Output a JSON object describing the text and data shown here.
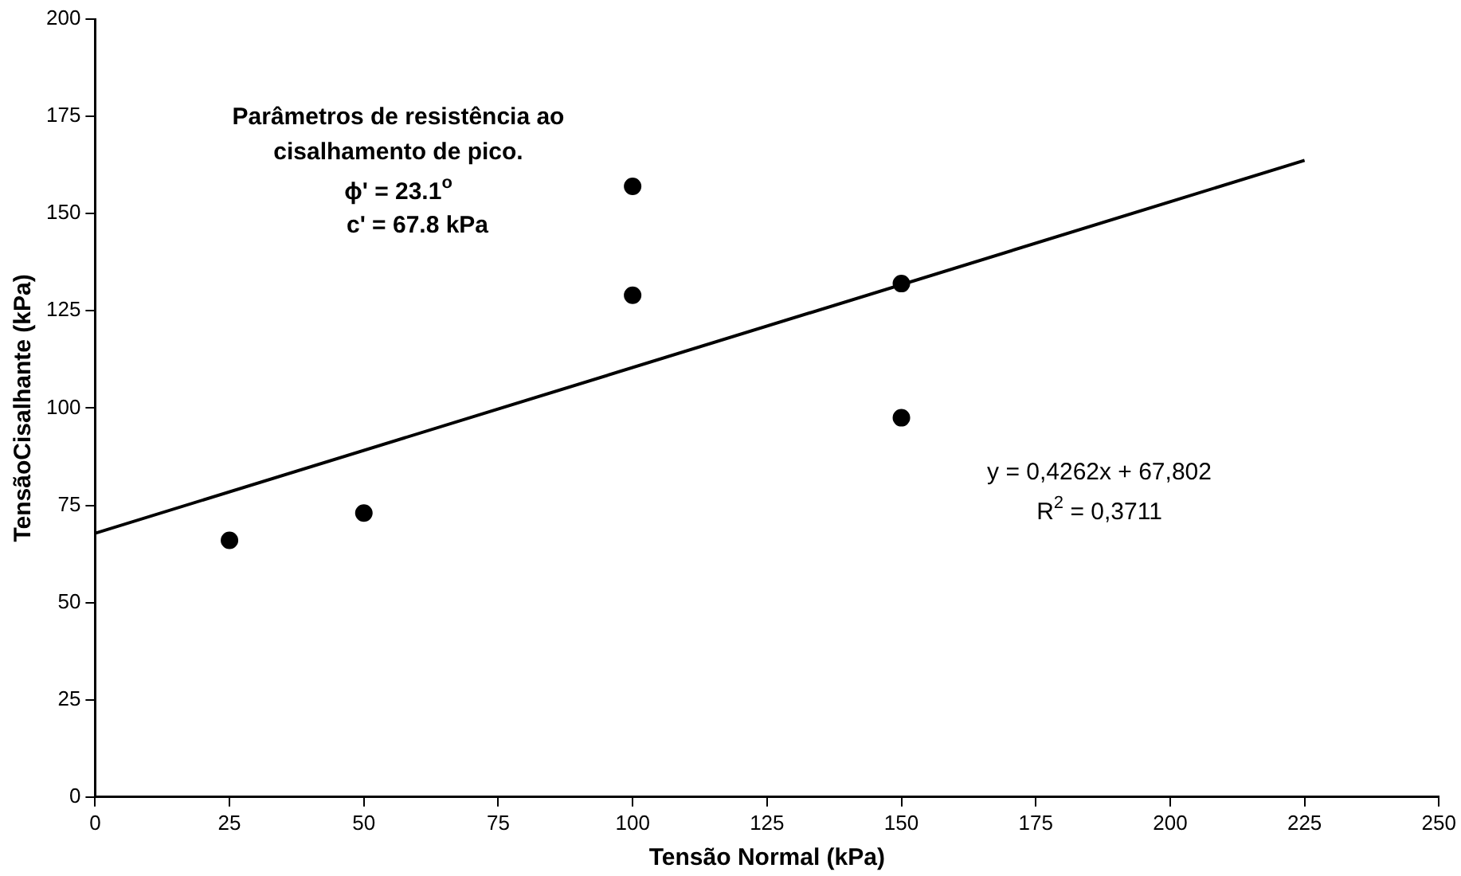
{
  "chart_data": {
    "type": "scatter",
    "xlabel": "Tensão Normal (kPa)",
    "ylabel": "TensãoCisalhante (kPa)",
    "xlim": [
      0,
      250
    ],
    "xticks": [
      0,
      25,
      50,
      75,
      100,
      125,
      150,
      175,
      200,
      225,
      250
    ],
    "ylim": [
      0,
      200
    ],
    "yticks": [
      0,
      25,
      50,
      75,
      100,
      125,
      150,
      175,
      200
    ],
    "grid": false,
    "legend": false,
    "marker": "circle",
    "series": [
      {
        "color": "#000000",
        "x": [
          25,
          50,
          100,
          100,
          150,
          150
        ],
        "values": [
          66,
          73,
          157,
          129,
          132,
          97.5
        ]
      },
      {
        "type": "line",
        "color": "#000000",
        "x": [
          0,
          225
        ],
        "values": [
          67.8,
          163.7
        ],
        "line_style": "solid",
        "marker": "none"
      }
    ],
    "annotations": [
      "Parâmetros de resistência ao",
      "cisalhamento de pico.",
      "ϕ' = 23.1$^{o}$",
      "c' = 67.8 kPa",
      "y = 0,4262x + 67,802",
      "R$^{2}$ = 0,3711"
    ]
  }
}
